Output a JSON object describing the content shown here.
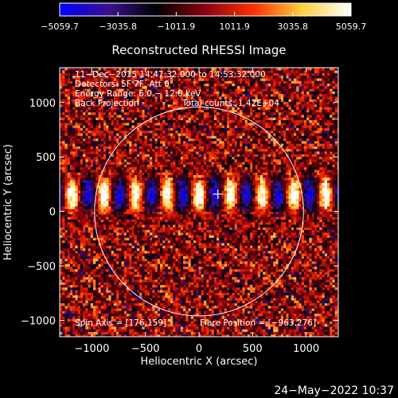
{
  "chart_data": {
    "type": "heatmap",
    "title": "Reconstructed RHESSI Image",
    "xlabel": "Heliocentric X (arcsec)",
    "ylabel": "Heliocentric Y (arcsec)",
    "xlim": [
      -1300,
      1300
    ],
    "ylim": [
      -1150,
      1320
    ],
    "xticks": [
      -1000,
      -500,
      0,
      500,
      1000
    ],
    "yticks": [
      -1000,
      -500,
      0,
      500,
      1000
    ],
    "colorbar": {
      "min": -5059.7,
      "max": 5059.7,
      "tick_labels": [
        "−5059.7",
        "−3035.8",
        "−1011.9",
        "1011.9",
        "3035.8",
        "5059.7"
      ],
      "colormap": [
        "#0000ff",
        "#3a1090",
        "#000000",
        "#8b0010",
        "#ff3000",
        "#ffd040",
        "#ffffff"
      ]
    },
    "annotations": [
      "11−Dec−2015 14:47:32.000 to 14:53:32.000",
      "Detectors: 5F 7F, Att 0",
      "Energy Range: 6.0 − 12.0 keV",
      "Back Projection",
      "Total counts: 1.42E+04"
    ],
    "solar_limb": {
      "center": [
        0,
        0
      ],
      "radius_arcsec": 975
    },
    "marker": {
      "type": "cross",
      "x": 176,
      "y": 159
    },
    "spin_axis_label": "Spin Axis = [176,159]",
    "flare_position_label": "Flare Position = [−963,276]"
  },
  "footer": {
    "timestamp": "24−May−2022 10:37"
  }
}
